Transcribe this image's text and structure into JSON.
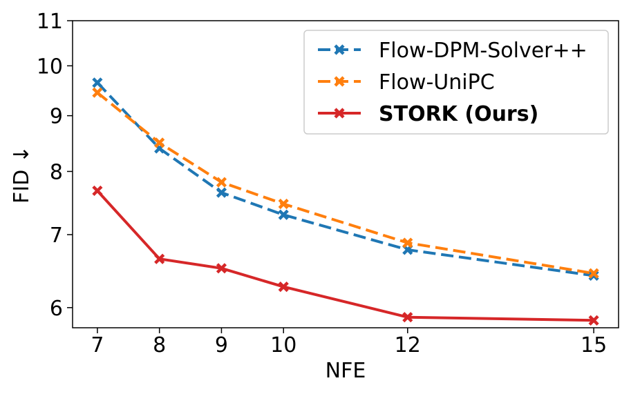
{
  "chart_data": {
    "type": "line",
    "xlabel": "NFE",
    "ylabel": "FID ↓",
    "x": [
      7,
      8,
      9,
      10,
      12,
      15
    ],
    "x_ticks": [
      "7",
      "8",
      "9",
      "10",
      "12",
      "15"
    ],
    "y_scale": "log",
    "ylim": [
      5.75,
      11
    ],
    "y_ticks": [
      "6",
      "7",
      "8",
      "9",
      "10",
      "11"
    ],
    "grid": false,
    "legend_position": "top-right",
    "series": [
      {
        "name": "Flow-DPM-Solver++",
        "color": "#1f77b4",
        "dash": "dashed",
        "marker": "x",
        "bold": false,
        "values": [
          9.65,
          8.4,
          7.65,
          7.3,
          6.78,
          6.42
        ]
      },
      {
        "name": "Flow-UniPC",
        "color": "#ff7f0e",
        "dash": "dashed",
        "marker": "x",
        "bold": false,
        "values": [
          9.45,
          8.5,
          7.82,
          7.47,
          6.88,
          6.45
        ]
      },
      {
        "name": "STORK (Ours)",
        "color": "#d62728",
        "dash": "solid",
        "marker": "x",
        "bold": true,
        "values": [
          7.68,
          6.65,
          6.52,
          6.27,
          5.88,
          5.84
        ]
      }
    ]
  }
}
